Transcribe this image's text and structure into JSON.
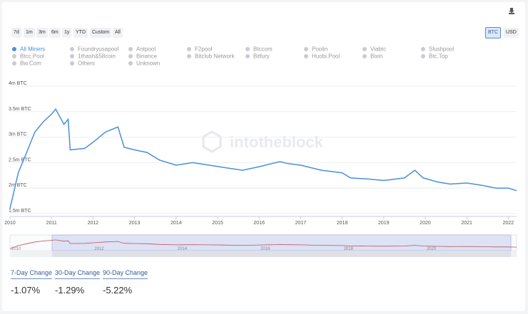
{
  "ranges": [
    "7d",
    "1m",
    "3m",
    "6m",
    "1y",
    "YTD",
    "Custom",
    "All"
  ],
  "units": [
    "BTC",
    "USD"
  ],
  "watermark": "intotheblock",
  "legend_other": [
    "Foundryusapool",
    "Antpool",
    "F2pool",
    "Btccom",
    "Poolin",
    "Viabtc",
    "Slushpool",
    "Btcc.Pool",
    "1thash&58coin",
    "Binance",
    "Bitclub Network",
    "Bitfury",
    "Huobi.Pool",
    "Bixin",
    "Btc.Top",
    "Bw.Com",
    "Others",
    "Unknown"
  ],
  "stats": [
    {
      "label": "7-Day Change",
      "value": "-1.07%"
    },
    {
      "label": "30-Day Change",
      "value": "-1.29%"
    },
    {
      "label": "90-Day Change",
      "value": "-5.22%"
    }
  ],
  "chart_data": {
    "type": "line",
    "x": [
      2010.0,
      2010.2,
      2010.4,
      2010.6,
      2010.8,
      2011.0,
      2011.1,
      2011.3,
      2011.4,
      2011.45,
      2011.8,
      2012.0,
      2012.3,
      2012.6,
      2012.75,
      2013.0,
      2013.3,
      2013.6,
      2014.0,
      2014.4,
      2014.8,
      2015.2,
      2015.6,
      2016.0,
      2016.5,
      2016.7,
      2017.0,
      2017.5,
      2018.0,
      2018.2,
      2018.6,
      2019.0,
      2019.5,
      2019.75,
      2019.95,
      2020.3,
      2020.6,
      2021.0,
      2021.4,
      2021.7,
      2022.0,
      2022.2
    ],
    "series": [
      {
        "name": "All Miners",
        "color": "#4a8fd9",
        "values": [
          1600000,
          2300000,
          2700000,
          3100000,
          3300000,
          3450000,
          3550000,
          3250000,
          3350000,
          2750000,
          2780000,
          2900000,
          3100000,
          3200000,
          2800000,
          2750000,
          2700000,
          2550000,
          2450000,
          2500000,
          2450000,
          2400000,
          2350000,
          2420000,
          2520000,
          2480000,
          2450000,
          2350000,
          2300000,
          2200000,
          2180000,
          2150000,
          2200000,
          2350000,
          2200000,
          2120000,
          2080000,
          2100000,
          2050000,
          2000000,
          2000000,
          1950000
        ]
      }
    ],
    "xlim": [
      2010,
      2022.2
    ],
    "ylim": [
      1500000,
      4000000
    ],
    "xticks": [
      2010,
      2011,
      2012,
      2013,
      2014,
      2015,
      2016,
      2017,
      2018,
      2019,
      2020,
      2021,
      2022
    ],
    "yticks": [
      {
        "value": 1500000,
        "label": "1.5m BTC"
      },
      {
        "value": 2000000,
        "label": "2m BTC"
      },
      {
        "value": 2500000,
        "label": "2.5m BTC"
      },
      {
        "value": 3000000,
        "label": "3m BTC"
      },
      {
        "value": 3500000,
        "label": "3.5m BTC"
      },
      {
        "value": 4000000,
        "label": "4m BTC"
      }
    ],
    "navigator_ticks": [
      2010,
      2012,
      2014,
      2016,
      2018,
      2020
    ],
    "grid": true
  }
}
